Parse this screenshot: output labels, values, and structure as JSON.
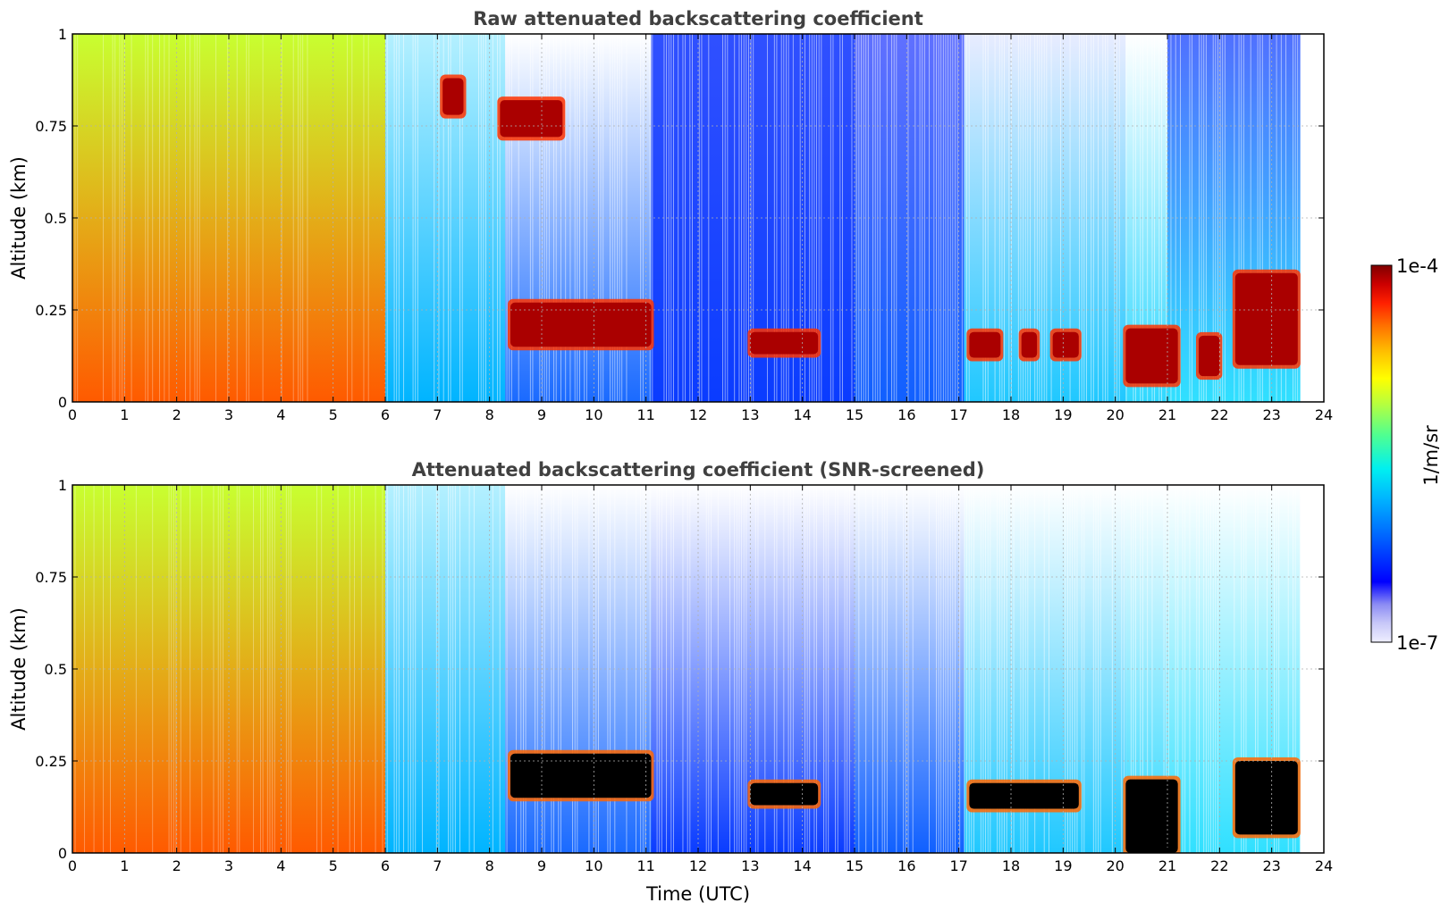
{
  "chart_data": [
    {
      "type": "heatmap",
      "title": "Raw attenuated backscattering coefficient",
      "xlabel": "",
      "ylabel": "Altitude (km)",
      "xlim": [
        0,
        24
      ],
      "ylim": [
        0,
        1
      ],
      "x_ticks": [
        "0",
        "1",
        "2",
        "3",
        "4",
        "5",
        "6",
        "7",
        "8",
        "9",
        "10",
        "11",
        "12",
        "13",
        "14",
        "15",
        "16",
        "17",
        "18",
        "19",
        "20",
        "21",
        "22",
        "23",
        "24"
      ],
      "y_ticks": [
        "0",
        "0.25",
        "0.5",
        "0.75",
        "1"
      ],
      "grid": true,
      "features": [
        {
          "time": [
            0,
            6
          ],
          "altitude": [
            0,
            1
          ],
          "level": "high (aerosol layer to top, ~1e-5)"
        },
        {
          "time": [
            7.1,
            7.5
          ],
          "altitude": [
            0.78,
            0.88
          ],
          "level": "cloud (~1e-4)"
        },
        {
          "time": [
            8.2,
            9.4
          ],
          "altitude": [
            0.72,
            0.82
          ],
          "level": "cloud (~1e-4)"
        },
        {
          "time": [
            8.4,
            11.1
          ],
          "altitude": [
            0.15,
            0.27
          ],
          "level": "cloud (~1e-4)"
        },
        {
          "time": [
            13.0,
            14.3
          ],
          "altitude": [
            0.13,
            0.19
          ],
          "level": "cloud (~1e-4)"
        },
        {
          "time": [
            17.2,
            17.8
          ],
          "altitude": [
            0.12,
            0.19
          ],
          "level": "cloud (~1e-4)"
        },
        {
          "time": [
            18.2,
            18.5
          ],
          "altitude": [
            0.12,
            0.19
          ],
          "level": "cloud (~1e-4)"
        },
        {
          "time": [
            18.8,
            19.3
          ],
          "altitude": [
            0.12,
            0.19
          ],
          "level": "cloud (~1e-4)"
        },
        {
          "time": [
            20.2,
            21.2
          ],
          "altitude": [
            0.05,
            0.2
          ],
          "level": "cloud (~1e-4)"
        },
        {
          "time": [
            21.6,
            22.0
          ],
          "altitude": [
            0.07,
            0.18
          ],
          "level": "cloud (~1e-4)"
        },
        {
          "time": [
            22.3,
            23.5
          ],
          "altitude": [
            0.1,
            0.35
          ],
          "level": "cloud (~1e-4)"
        }
      ]
    },
    {
      "type": "heatmap",
      "title": "Attenuated backscattering coefficient (SNR-screened)",
      "xlabel": "Time (UTC)",
      "ylabel": "Altitude (km)",
      "xlim": [
        0,
        24
      ],
      "ylim": [
        0,
        1
      ],
      "x_ticks": [
        "0",
        "1",
        "2",
        "3",
        "4",
        "5",
        "6",
        "7",
        "8",
        "9",
        "10",
        "11",
        "12",
        "13",
        "14",
        "15",
        "16",
        "17",
        "18",
        "19",
        "20",
        "21",
        "22",
        "23",
        "24"
      ],
      "y_ticks": [
        "0",
        "0.25",
        "0.5",
        "0.75",
        "1"
      ],
      "grid": true,
      "features": [
        {
          "time": [
            0,
            6
          ],
          "altitude": [
            0,
            1
          ],
          "level": "high (~1e-5)"
        },
        {
          "time": [
            8.4,
            11.1
          ],
          "altitude": [
            0.15,
            0.27
          ],
          "level": "saturated (black)"
        },
        {
          "time": [
            13.0,
            14.3
          ],
          "altitude": [
            0.13,
            0.19
          ],
          "level": "saturated (black)"
        },
        {
          "time": [
            17.2,
            19.3
          ],
          "altitude": [
            0.12,
            0.19
          ],
          "level": "saturated (black)"
        },
        {
          "time": [
            20.2,
            21.2
          ],
          "altitude": [
            0.0,
            0.2
          ],
          "level": "saturated (black)"
        },
        {
          "time": [
            22.3,
            23.5
          ],
          "altitude": [
            0.05,
            0.25
          ],
          "level": "saturated (black)"
        }
      ]
    }
  ],
  "colorbar": {
    "min_label": "1e-7",
    "max_label": "1e-4",
    "unit_label": "1/m/sr",
    "colors": [
      "#eeeeff",
      "#c8c8f8",
      "#8c8cf4",
      "#0000ff",
      "#0064ff",
      "#00b4ff",
      "#00f0f0",
      "#50ff90",
      "#b4ff40",
      "#ffff00",
      "#ffc000",
      "#ff7000",
      "#ff2000",
      "#cc0000",
      "#800000"
    ]
  }
}
